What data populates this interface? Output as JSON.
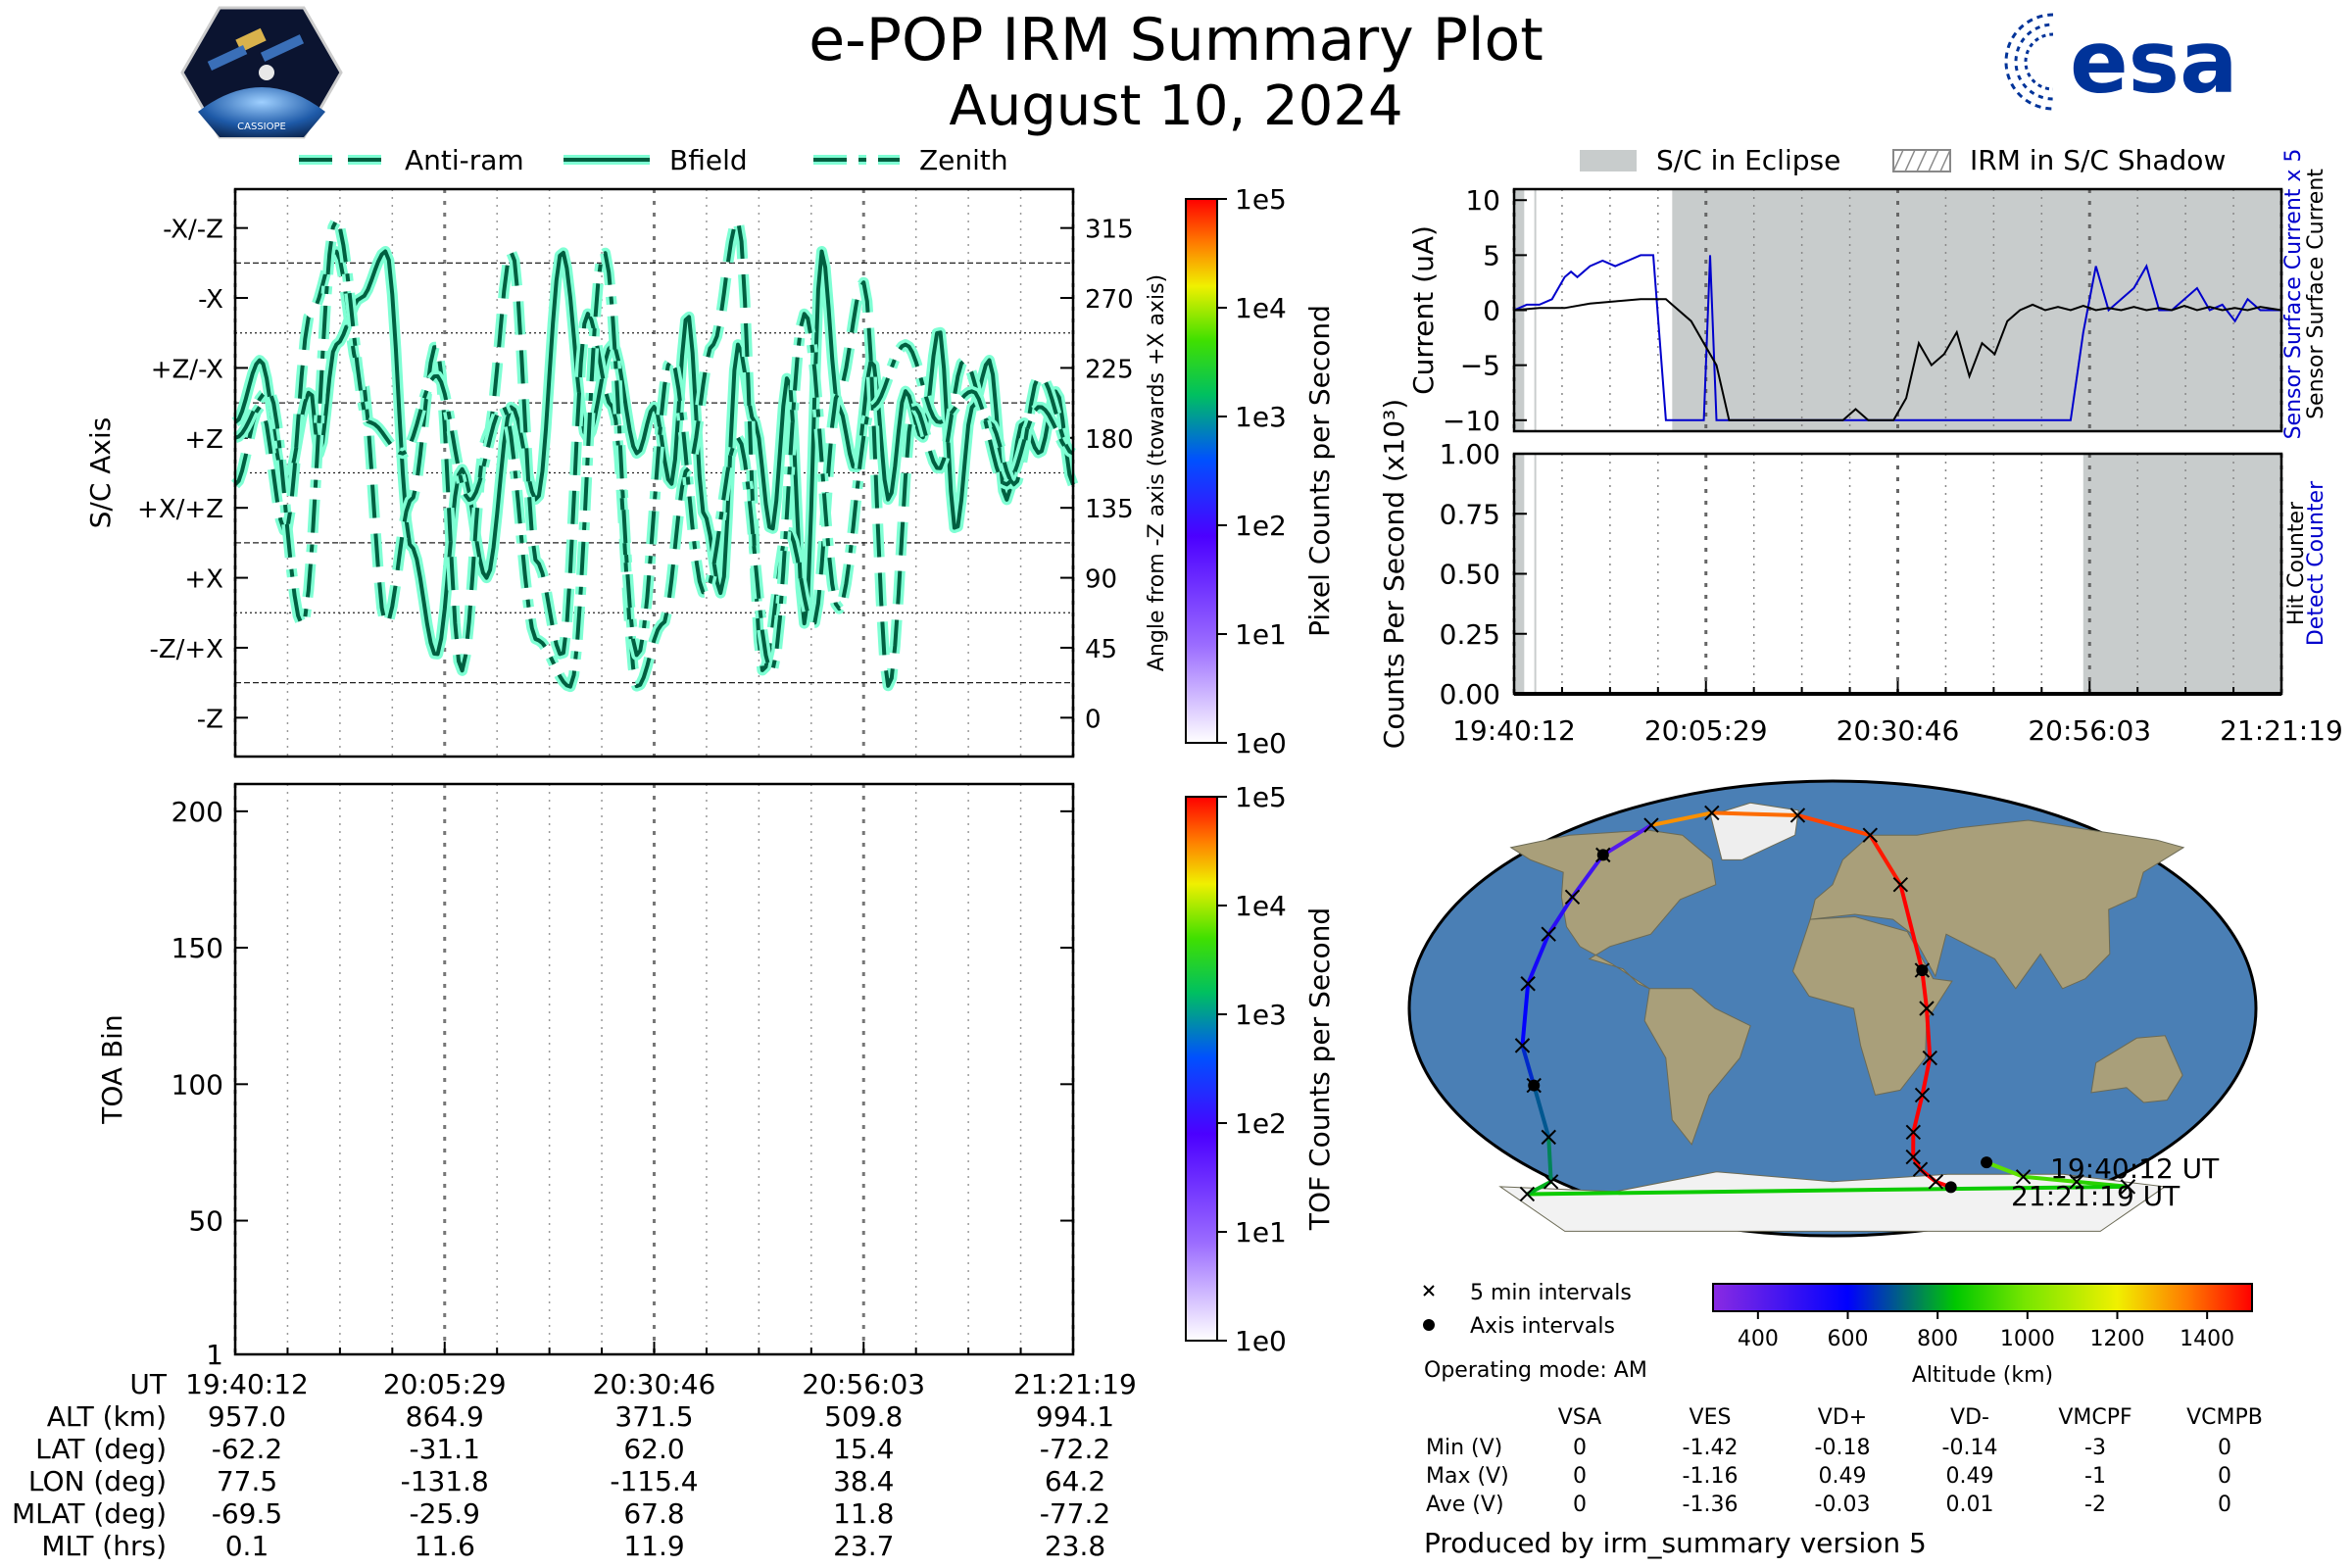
{
  "header": {
    "title": "e-POP IRM Summary Plot",
    "date": "August 10, 2024",
    "mission_logo_text": "CASSIOPE",
    "agency_logo_text": "esa"
  },
  "colors": {
    "trace_fill": "#7fffd4",
    "trace_edge": "#005f40",
    "eclipse_gray": "#c8cccc",
    "current_blue": "#0000cc",
    "current_black": "#000000",
    "esa_blue": "#003399",
    "ocean": "#4a7fb5",
    "land": "#a99f7a"
  },
  "chart_data": [
    {
      "id": "sc_axis_plot",
      "type": "line",
      "title": "",
      "ylabel": "S/C Axis",
      "y_right_label": "Angle from -Z axis (towards +X axis)",
      "y_tick_labels": [
        "-X/-Z",
        "-X",
        "+Z/-X",
        "+Z",
        "+X/+Z",
        "+X",
        "-Z/+X",
        "-Z"
      ],
      "y_right_tick_labels": [
        "315",
        "270",
        "225",
        "180",
        "135",
        "90",
        "45",
        "0"
      ],
      "ylim": [
        -25,
        340
      ],
      "legend": [
        "Anti-ram",
        "Bfield",
        "Zenith"
      ],
      "legend_position": "top",
      "grid": true,
      "colorbar": {
        "label": "Pixel Counts per Second",
        "tick_labels": [
          "1e5",
          "1e4",
          "1e3",
          "1e2",
          "1e1",
          "1e0"
        ],
        "scale": "log"
      },
      "series": [
        {
          "name": "Bfield",
          "style": "solid",
          "x": [
            0,
            0.03,
            0.06,
            0.09,
            0.1,
            0.12,
            0.15,
            0.18,
            0.21,
            0.24,
            0.27,
            0.3,
            0.33,
            0.36,
            0.39,
            0.42,
            0.45,
            0.48,
            0.5,
            0.52,
            0.54,
            0.56,
            0.58,
            0.6,
            0.62,
            0.64,
            0.66,
            0.68,
            0.7,
            0.72,
            0.74,
            0.76,
            0.78,
            0.8,
            0.82,
            0.84,
            0.86,
            0.88,
            0.9,
            0.92,
            0.94,
            0.96,
            0.98,
            1.0
          ],
          "y": [
            190,
            230,
            150,
            210,
            170,
            240,
            270,
            300,
            110,
            40,
            160,
            90,
            200,
            140,
            300,
            180,
            240,
            170,
            200,
            150,
            260,
            130,
            80,
            240,
            190,
            120,
            220,
            60,
            300,
            200,
            160,
            230,
            140,
            210,
            180,
            250,
            120,
            200,
            230,
            140,
            190,
            170,
            210,
            150
          ]
        },
        {
          "name": "Anti-ram",
          "style": "dashed",
          "x": [
            0,
            0.03,
            0.06,
            0.09,
            0.12,
            0.15,
            0.18,
            0.21,
            0.24,
            0.27,
            0.3,
            0.33,
            0.36,
            0.39,
            0.42,
            0.45,
            0.48,
            0.51,
            0.54,
            0.57,
            0.6,
            0.63,
            0.66,
            0.69,
            0.72,
            0.75,
            0.78,
            0.81,
            0.84,
            0.87,
            0.9,
            0.93,
            0.96,
            1.0
          ],
          "y": [
            150,
            200,
            120,
            260,
            300,
            220,
            60,
            140,
            240,
            30,
            180,
            300,
            100,
            40,
            260,
            200,
            20,
            60,
            160,
            240,
            320,
            30,
            120,
            60,
            210,
            280,
            20,
            200,
            160,
            230,
            190,
            150,
            220,
            170
          ]
        },
        {
          "name": "Zenith",
          "style": "dashdot",
          "x": [
            0,
            0.04,
            0.08,
            0.12,
            0.16,
            0.2,
            0.24,
            0.28,
            0.32,
            0.36,
            0.4,
            0.44,
            0.48,
            0.52,
            0.56,
            0.6,
            0.64,
            0.68,
            0.72,
            0.76,
            0.8,
            0.84,
            0.88,
            0.92,
            0.96,
            1.0
          ],
          "y": [
            180,
            210,
            60,
            320,
            190,
            170,
            220,
            140,
            200,
            50,
            20,
            300,
            40,
            230,
            80,
            180,
            30,
            260,
            70,
            200,
            240,
            190,
            210,
            150,
            200,
            170
          ]
        }
      ]
    },
    {
      "id": "toa_plot",
      "type": "heatmap",
      "title": "",
      "ylabel": "TOA Bin",
      "y_tick_labels": [
        "200",
        "150",
        "100",
        "50",
        "1"
      ],
      "ylim": [
        1,
        210
      ],
      "grid": true,
      "values": [],
      "colorbar": {
        "label": "TOF Counts per Second",
        "tick_labels": [
          "1e5",
          "1e4",
          "1e3",
          "1e2",
          "1e1",
          "1e0"
        ],
        "scale": "log"
      }
    },
    {
      "id": "current_plot",
      "type": "line",
      "title": "",
      "ylabel": "Current (uA)",
      "y_tick_labels": [
        "10",
        "5",
        "0",
        "−5",
        "−10"
      ],
      "ylim": [
        -11,
        11
      ],
      "xlim": [
        0,
        6067
      ],
      "legend": [
        "S/C in Eclipse",
        "IRM in S/C Shadow"
      ],
      "legend_position": "top",
      "right_labels": [
        {
          "text": "Sensor Surface Current x 5",
          "color": "#0000cc"
        },
        {
          "text": "Sensor Surface Current",
          "color": "#000000"
        }
      ],
      "eclipse_spans": [
        [
          0,
          80
        ],
        [
          160,
          175
        ],
        [
          1250,
          6067
        ]
      ],
      "series": [
        {
          "name": "Sensor Surface Current x 5",
          "color": "#0000cc",
          "x": [
            0,
            100,
            200,
            300,
            400,
            450,
            500,
            600,
            700,
            800,
            900,
            1000,
            1100,
            1200,
            1250,
            1300,
            1400,
            1500,
            1550,
            1600,
            1700,
            1800,
            1900,
            2000,
            2100,
            2200,
            2300,
            2400,
            2500,
            2600,
            2700,
            2800,
            2900,
            3000,
            3100,
            3200,
            3300,
            3400,
            3500,
            3600,
            3700,
            3800,
            3900,
            4000,
            4100,
            4200,
            4300,
            4400,
            4500,
            4600,
            4700,
            4800,
            4900,
            5000,
            5100,
            5200,
            5300,
            5400,
            5500,
            5600,
            5700,
            5800,
            5900,
            6067
          ],
          "y": [
            0,
            0.5,
            0.5,
            1,
            3,
            3.5,
            3,
            4,
            4.5,
            4,
            4.5,
            5,
            5,
            -10,
            -10,
            -10,
            -10,
            -10,
            5,
            -10,
            -10,
            -10,
            -10,
            -10,
            -10,
            -10,
            -10,
            -10,
            -10,
            -10,
            -10,
            -10,
            -10,
            -10,
            -10,
            -10,
            -10,
            -10,
            -10,
            -10,
            -10,
            -10,
            -10,
            -10,
            -10,
            -10,
            -10,
            -10,
            -2,
            4,
            0,
            1,
            2,
            4,
            0,
            0,
            1,
            2,
            0,
            0.5,
            -1,
            1,
            0,
            0
          ]
        },
        {
          "name": "Sensor Surface Current",
          "color": "#000000",
          "x": [
            0,
            200,
            400,
            600,
            800,
            1000,
            1200,
            1250,
            1400,
            1500,
            1600,
            1700,
            1800,
            1900,
            2000,
            2100,
            2200,
            2300,
            2400,
            2500,
            2600,
            2700,
            2800,
            2900,
            3000,
            3100,
            3200,
            3300,
            3400,
            3500,
            3600,
            3700,
            3800,
            3900,
            4000,
            4100,
            4200,
            4300,
            4400,
            4500,
            4600,
            4700,
            4800,
            4900,
            5000,
            5100,
            5200,
            5300,
            5400,
            5500,
            5600,
            5700,
            5800,
            5900,
            6067
          ],
          "y": [
            0,
            0.2,
            0.2,
            0.6,
            0.8,
            1,
            1,
            0.5,
            -1,
            -3,
            -5,
            -10,
            -10,
            -10,
            -10,
            -10,
            -10,
            -10,
            -10,
            -10,
            -10,
            -9,
            -10,
            -10,
            -10,
            -8,
            -3,
            -5,
            -4,
            -2,
            -6,
            -3,
            -4,
            -1,
            0,
            0.5,
            0,
            0.3,
            0,
            0.4,
            0,
            0.2,
            0,
            0.3,
            0,
            0.2,
            0,
            0.4,
            0,
            0.3,
            0,
            0.2,
            0,
            0.3,
            0
          ]
        }
      ]
    },
    {
      "id": "counts_plot",
      "type": "line",
      "title": "",
      "ylabel": "Counts Per Second (x10³)",
      "y_tick_labels": [
        "1.00",
        "0.75",
        "0.50",
        "0.25",
        "0.00"
      ],
      "ylim": [
        0,
        1
      ],
      "xlim": [
        0,
        6067
      ],
      "x_tick_labels": [
        "19:40:12",
        "20:05:29",
        "20:30:46",
        "20:56:03",
        "21:21:19"
      ],
      "right_labels": [
        {
          "text": "Detect Counter",
          "color": "#0000cc"
        },
        {
          "text": "Hit Counter",
          "color": "#000000"
        }
      ],
      "eclipse_spans": [
        [
          0,
          80
        ],
        [
          160,
          175
        ],
        [
          4500,
          6067
        ]
      ],
      "series": [
        {
          "name": "Detect Counter",
          "color": "#0000cc",
          "x": [
            0,
            6067
          ],
          "y": [
            0,
            0
          ]
        },
        {
          "name": "Hit Counter",
          "color": "#000000",
          "x": [
            0,
            6067
          ],
          "y": [
            0,
            0
          ]
        }
      ]
    }
  ],
  "time_axis": {
    "row_labels": [
      "UT",
      "ALT (km)",
      "LAT (deg)",
      "LON (deg)",
      "MLAT (deg)",
      "MLT (hrs)"
    ],
    "columns": [
      [
        "19:40:12",
        "957.0",
        "-62.2",
        "77.5",
        "-69.5",
        "0.1"
      ],
      [
        "20:05:29",
        "864.9",
        "-31.1",
        "-131.8",
        "-25.9",
        "11.6"
      ],
      [
        "20:30:46",
        "371.5",
        "62.0",
        "-115.4",
        "67.8",
        "11.9"
      ],
      [
        "20:56:03",
        "509.8",
        "15.4",
        "38.4",
        "11.8",
        "23.7"
      ],
      [
        "21:21:19",
        "994.1",
        "-72.2",
        "64.2",
        "-77.2",
        "23.8"
      ]
    ]
  },
  "map": {
    "start_label": "19:40:12 UT",
    "end_label": "21:21:19 UT",
    "legend_5min": "5 min intervals",
    "legend_axis": "Axis intervals",
    "operating_mode": "Operating mode: AM",
    "colorbar_label": "Altitude (km)",
    "colorbar_ticks": [
      "400",
      "600",
      "800",
      "1000",
      "1200",
      "1400"
    ],
    "track_lon": [
      77.5,
      100,
      130,
      160,
      -170,
      -150,
      -135,
      -131.8,
      -133,
      -130,
      -125,
      -120,
      -115.4,
      -100,
      -70,
      -20,
      20,
      32,
      38.4,
      40,
      42,
      40,
      38,
      40,
      45,
      55,
      64.2
    ],
    "track_lat": [
      -62.2,
      -68,
      -70,
      -72,
      -75,
      -70,
      -52,
      -31.1,
      -15,
      10,
      30,
      45,
      62.0,
      74,
      79,
      78,
      70,
      50,
      15.4,
      0,
      -20,
      -35,
      -50,
      -60,
      -65,
      -70,
      -72.2
    ]
  },
  "voltage_table": {
    "headers": [
      "",
      "VSA",
      "VES",
      "VD+",
      "VD-",
      "VMCPF",
      "VCMPB"
    ],
    "rows": [
      [
        "Min (V)",
        "0",
        "-1.42",
        "-0.18",
        "-0.14",
        "-3",
        "0"
      ],
      [
        "Max (V)",
        "0",
        "-1.16",
        "0.49",
        "0.49",
        "-1",
        "0"
      ],
      [
        "Ave (V)",
        "0",
        "-1.36",
        "-0.03",
        "0.01",
        "-2",
        "0"
      ]
    ]
  },
  "footer": "Produced by irm_summary version 5"
}
